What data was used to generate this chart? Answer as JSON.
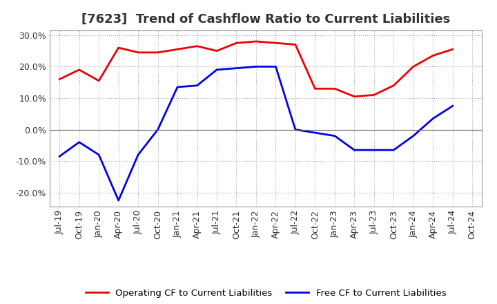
{
  "title": "[7623]  Trend of Cashflow Ratio to Current Liabilities",
  "x_labels": [
    "Jul-19",
    "Oct-19",
    "Jan-20",
    "Apr-20",
    "Jul-20",
    "Oct-20",
    "Jan-21",
    "Apr-21",
    "Jul-21",
    "Oct-21",
    "Jan-22",
    "Apr-22",
    "Jul-22",
    "Oct-22",
    "Jan-23",
    "Apr-23",
    "Jul-23",
    "Oct-23",
    "Jan-24",
    "Apr-24",
    "Jul-24",
    "Oct-24"
  ],
  "operating_cf": [
    0.16,
    0.19,
    0.155,
    0.26,
    0.245,
    0.245,
    0.255,
    0.265,
    0.25,
    0.275,
    0.28,
    0.275,
    0.27,
    0.13,
    0.13,
    0.105,
    0.11,
    0.14,
    0.2,
    0.235,
    0.255,
    null
  ],
  "free_cf": [
    -0.085,
    -0.04,
    -0.08,
    -0.225,
    -0.08,
    0.0,
    0.135,
    0.14,
    0.19,
    0.195,
    0.2,
    0.2,
    0.0,
    -0.01,
    -0.02,
    -0.065,
    -0.065,
    -0.065,
    -0.02,
    0.035,
    0.075,
    null
  ],
  "operating_color": "#EE0000",
  "free_color": "#0000EE",
  "ylim": [
    -0.245,
    0.315
  ],
  "yticks": [
    -0.2,
    -0.1,
    0.0,
    0.1,
    0.2,
    0.3
  ],
  "background_color": "#FFFFFF",
  "grid_color": "#AAAAAA",
  "title_color": "#333333",
  "legend_op": "Operating CF to Current Liabilities",
  "legend_free": "Free CF to Current Liabilities",
  "title_fontsize": 13,
  "tick_fontsize": 9
}
